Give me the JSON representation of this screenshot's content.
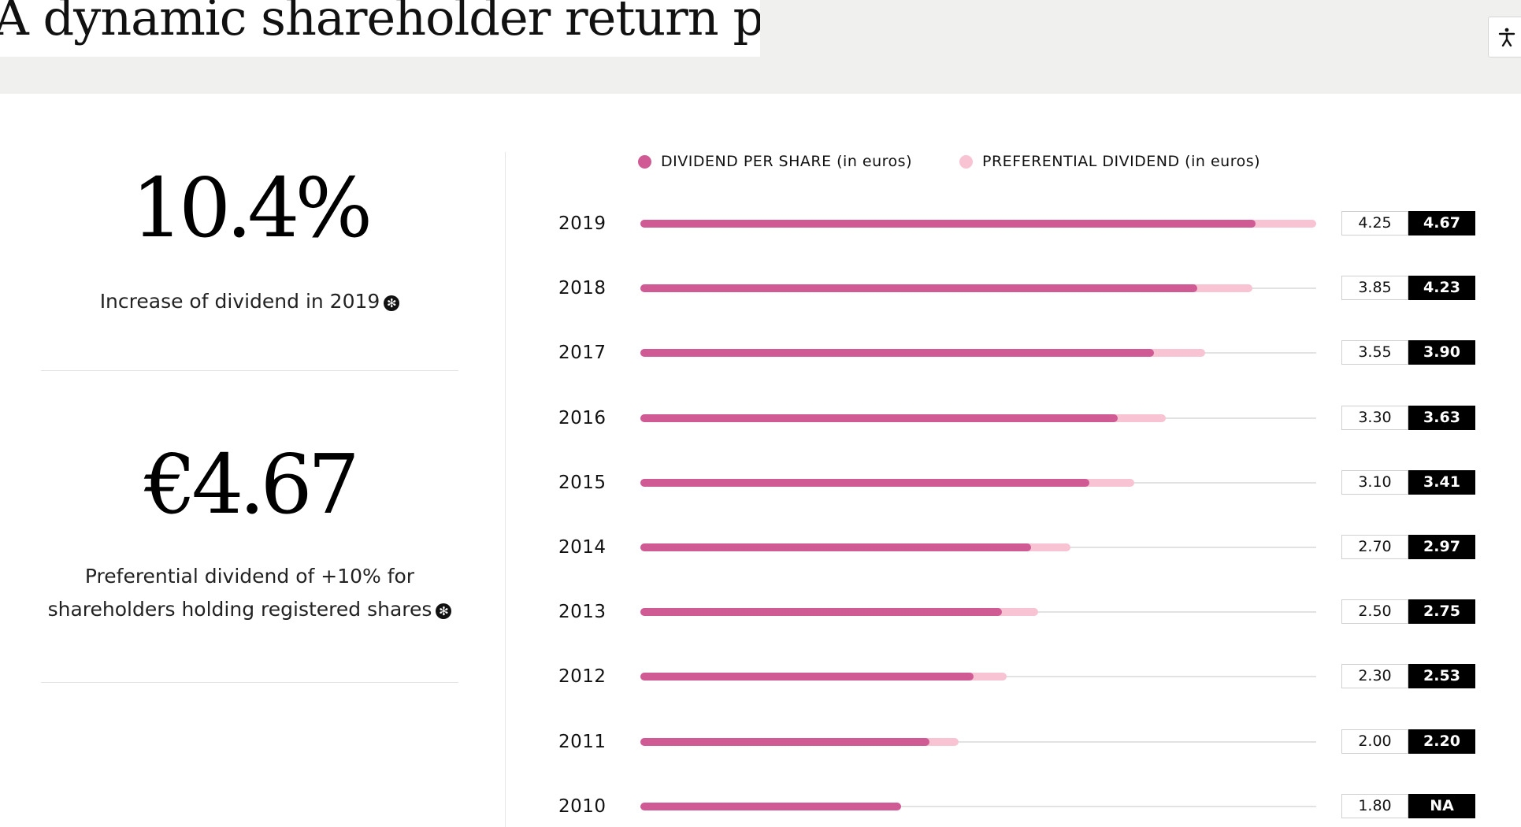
{
  "header": {
    "title": "A dynamic shareholder return policy"
  },
  "stats": [
    {
      "value": "10.4%",
      "description": "Increase of dividend in 2019"
    },
    {
      "value": "€4.67",
      "description_line1": "Preferential dividend of +10% for",
      "description_line2": "shareholders holding registered shares"
    }
  ],
  "chart_data": {
    "type": "bar",
    "orientation": "horizontal",
    "categories": [
      "2019",
      "2018",
      "2017",
      "2016",
      "2015",
      "2014",
      "2013",
      "2012",
      "2011",
      "2010"
    ],
    "series": [
      {
        "name": "DIVIDEND PER SHARE (in euros)",
        "values": [
          4.25,
          3.85,
          3.55,
          3.3,
          3.1,
          2.7,
          2.5,
          2.3,
          2.0,
          1.8
        ],
        "labels": [
          "4.25",
          "3.85",
          "3.55",
          "3.30",
          "3.10",
          "2.70",
          "2.50",
          "2.30",
          "2.00",
          "1.80"
        ],
        "color": "#d05a93"
      },
      {
        "name": "PREFERENTIAL DIVIDEND (in euros)",
        "values": [
          4.67,
          4.23,
          3.9,
          3.63,
          3.41,
          2.97,
          2.75,
          2.53,
          2.2,
          null
        ],
        "labels": [
          "4.67",
          "4.23",
          "3.90",
          "3.63",
          "3.41",
          "2.97",
          "2.75",
          "2.53",
          "2.20",
          "NA"
        ],
        "color": "#f8c3d3"
      }
    ],
    "xlim": [
      0,
      4.67
    ],
    "legend_position": "top",
    "grid": false
  }
}
